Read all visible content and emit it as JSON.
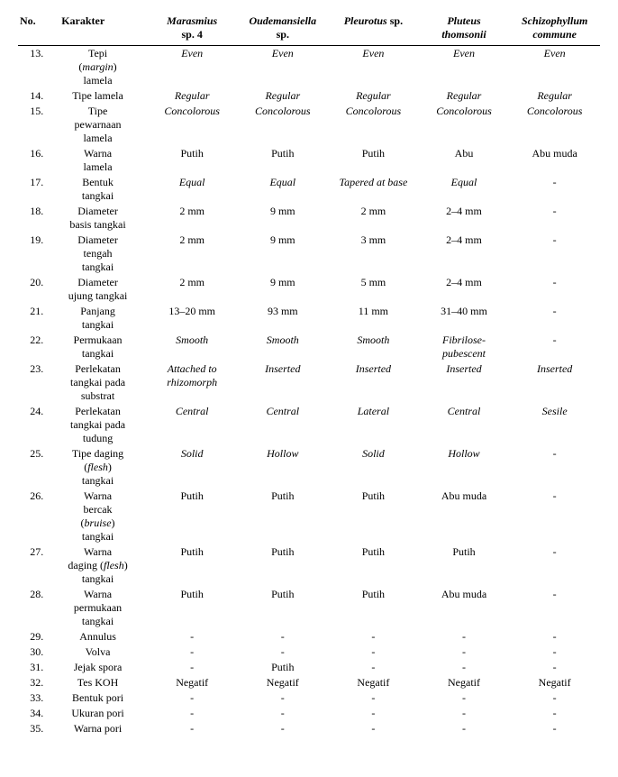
{
  "headers": {
    "no": "No.",
    "karakter": "Karakter",
    "sp1a": "Marasmius",
    "sp1b": "sp. 4",
    "sp2a": "Oudemansiella",
    "sp2b": "sp.",
    "sp3a": "Pleurotus",
    "sp3b_plain": " sp.",
    "sp4a": "Pluteus",
    "sp4b": "thomsonii",
    "sp5a": "Schizophyllum",
    "sp5b": "commune"
  },
  "rows": [
    {
      "no": "13.",
      "k1": "Tepi",
      "k2_ital": "margin",
      "k2_par": true,
      "k3": "lamela",
      "c": [
        "Even",
        "Even",
        "Even",
        "Even",
        "Even"
      ],
      "style": "ital"
    },
    {
      "no": "14.",
      "k1": "Tipe lamela",
      "c": [
        "Regular",
        "Regular",
        "Regular",
        "Regular",
        "Regular"
      ],
      "style": "ital"
    },
    {
      "no": "15.",
      "k1": "Tipe",
      "k2": "pewarnaan",
      "k3": "lamela",
      "c": [
        "Concolorous",
        "Concolorous",
        "Concolorous",
        "Concolorous",
        "Concolorous"
      ],
      "style": "ital"
    },
    {
      "no": "16.",
      "k1": "Warna",
      "k2": "lamela",
      "c": [
        "Putih",
        "Putih",
        "Putih",
        "Abu",
        "Abu muda"
      ]
    },
    {
      "no": "17.",
      "k1": "Bentuk",
      "k2": "tangkai",
      "c": [
        "Equal",
        "Equal",
        "Tapered at base",
        "Equal",
        "-"
      ],
      "style": "ital",
      "dashPlain": true
    },
    {
      "no": "18.",
      "k1": "Diameter",
      "k2": "basis tangkai",
      "c": [
        "2 mm",
        "9 mm",
        "2 mm",
        "2–4 mm",
        "-"
      ]
    },
    {
      "no": "19.",
      "k1": "Diameter",
      "k2": "tengah",
      "k3": "tangkai",
      "c": [
        "2 mm",
        "9 mm",
        "3 mm",
        "2–4 mm",
        "-"
      ]
    },
    {
      "no": "20.",
      "k1": "Diameter",
      "k2": "ujung tangkai",
      "c": [
        "2 mm",
        "9 mm",
        "5 mm",
        "2–4 mm",
        "-"
      ]
    },
    {
      "no": "21.",
      "k1": "Panjang",
      "k2": "tangkai",
      "c": [
        "13–20 mm",
        "93 mm",
        "11 mm",
        "31–40 mm",
        "-"
      ]
    },
    {
      "no": "22.",
      "k1": "Permukaan",
      "k2": "tangkai",
      "c": [
        "Smooth",
        "Smooth",
        "Smooth",
        "Fibrilose-\npubescent",
        "-"
      ],
      "style": "ital",
      "dashPlain": true
    },
    {
      "no": "23.",
      "k1": "Perlekatan",
      "k2": "tangkai pada",
      "k3": "substrat",
      "c": [
        "Attached to\nrhizomorph",
        "Inserted",
        "Inserted",
        "Inserted",
        "Inserted"
      ],
      "style": "ital"
    },
    {
      "no": "24.",
      "k1": "Perlekatan",
      "k2": "tangkai pada",
      "k3": "tudung",
      "c": [
        "Central",
        "Central",
        "Lateral",
        "Central",
        "Sesile"
      ],
      "style": "ital"
    },
    {
      "no": "25.",
      "k1": "Tipe daging",
      "k2_ital": "flesh",
      "k2_par": true,
      "k3": "tangkai",
      "c": [
        "Solid",
        "Hollow",
        "Solid",
        "Hollow",
        "-"
      ],
      "style": "ital",
      "dashPlain": true
    },
    {
      "no": "26.",
      "k1": "Warna",
      "k2": "bercak",
      "k3_ital": "bruise",
      "k3_par": true,
      "k4": "tangkai",
      "c": [
        "Putih",
        "Putih",
        "Putih",
        "Abu muda",
        "-"
      ]
    },
    {
      "no": "27.",
      "k1": "Warna",
      "k2_mixed": {
        "pre": "daging (",
        "ital": "flesh",
        "post": ")"
      },
      "k3": "tangkai",
      "c": [
        "Putih",
        "Putih",
        "Putih",
        "Putih",
        "-"
      ]
    },
    {
      "no": "28.",
      "k1": "Warna",
      "k2": "permukaan",
      "k3": "tangkai",
      "c": [
        "Putih",
        "Putih",
        "Putih",
        "Abu muda",
        "-"
      ]
    },
    {
      "no": "29.",
      "k1": "Annulus",
      "c": [
        "-",
        "-",
        "-",
        "-",
        "-"
      ]
    },
    {
      "no": "30.",
      "k1": "Volva",
      "c": [
        "-",
        "-",
        "-",
        "-",
        "-"
      ]
    },
    {
      "no": "31.",
      "k1": "Jejak spora",
      "c": [
        "-",
        "Putih",
        "-",
        "-",
        "-"
      ]
    },
    {
      "no": "32.",
      "k1": "Tes KOH",
      "c": [
        "Negatif",
        "Negatif",
        "Negatif",
        "Negatif",
        "Negatif"
      ]
    },
    {
      "no": "33.",
      "k1": "Bentuk pori",
      "c": [
        "-",
        "-",
        "-",
        "-",
        "-"
      ]
    },
    {
      "no": "34.",
      "k1": "Ukuran pori",
      "c": [
        "-",
        "-",
        "-",
        "-",
        "-"
      ]
    },
    {
      "no": "35.",
      "k1": "Warna pori",
      "c": [
        "-",
        "-",
        "-",
        "-",
        "-"
      ]
    }
  ]
}
